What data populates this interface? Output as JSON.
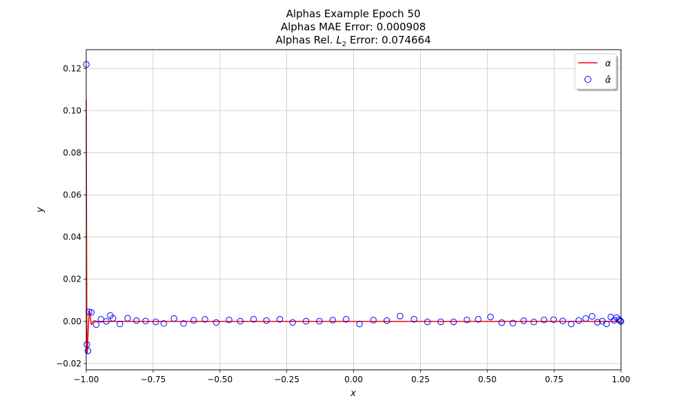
{
  "chart_data": {
    "type": "line",
    "title_lines": [
      "Alphas Example Epoch 50",
      "Alphas MAE Error: 0.000908"
    ],
    "title_l2": {
      "prefix": "Alphas Rel. ",
      "symbol": "L",
      "subscript": "2",
      "suffix": " Error: 0.074664"
    },
    "xlabel": "x",
    "ylabel": "y",
    "xlim": [
      -1.0,
      1.0
    ],
    "ylim": [
      -0.023,
      0.129
    ],
    "xticks": [
      -1.0,
      -0.75,
      -0.5,
      -0.25,
      0.0,
      0.25,
      0.5,
      0.75,
      1.0
    ],
    "xtick_labels": [
      "−1.00",
      "−0.75",
      "−0.50",
      "−0.25",
      "0.00",
      "0.25",
      "0.50",
      "0.75",
      "1.00"
    ],
    "yticks": [
      -0.02,
      0.0,
      0.02,
      0.04,
      0.06,
      0.08,
      0.1,
      0.12
    ],
    "ytick_labels": [
      "−0.02",
      "0.00",
      "0.02",
      "0.04",
      "0.06",
      "0.08",
      "0.10",
      "0.12"
    ],
    "grid": true,
    "legend_position": "top-right",
    "colors": {
      "line": "#ff0000",
      "markers": "#0000ff"
    },
    "series": [
      {
        "name": "α",
        "kind": "line",
        "x": [
          -1.0,
          -0.999,
          -0.998,
          -0.997,
          -0.996,
          -0.995,
          -0.994,
          -0.993,
          -0.992,
          -0.991,
          -0.99,
          -0.988,
          -0.986,
          -0.984,
          -0.982,
          -0.98,
          -0.978,
          -0.975,
          -0.97,
          -0.96,
          -0.95,
          -0.9,
          -0.5,
          0.0,
          0.5,
          0.999,
          1.0
        ],
        "y": [
          0.105,
          0.05,
          0.0,
          -0.014,
          -0.015,
          -0.012,
          -0.008,
          -0.005,
          -0.002,
          0.0,
          0.002,
          0.005,
          0.004,
          0.0015,
          -0.001,
          -0.0015,
          -0.001,
          0.0,
          0.0003,
          0.0,
          0.0,
          0.0,
          0.0,
          0.0,
          0.0,
          0.0,
          0.0
        ]
      },
      {
        "name": "α̂",
        "kind": "scatter",
        "x": [
          -0.9995,
          -0.9975,
          -0.994,
          -0.99,
          -0.981,
          -0.963,
          -0.945,
          -0.925,
          -0.91,
          -0.9,
          -0.874,
          -0.845,
          -0.812,
          -0.778,
          -0.74,
          -0.71,
          -0.672,
          -0.636,
          -0.598,
          -0.556,
          -0.514,
          -0.466,
          -0.424,
          -0.374,
          -0.326,
          -0.276,
          -0.228,
          -0.178,
          -0.128,
          -0.078,
          -0.028,
          0.022,
          0.074,
          0.124,
          0.174,
          0.226,
          0.276,
          0.326,
          0.374,
          0.424,
          0.466,
          0.512,
          0.554,
          0.596,
          0.636,
          0.674,
          0.712,
          0.748,
          0.782,
          0.814,
          0.842,
          0.868,
          0.892,
          0.912,
          0.93,
          0.946,
          0.962,
          0.974,
          0.984,
          0.992,
          0.997,
          0.9995
        ],
        "y": [
          0.122,
          -0.011,
          -0.014,
          0.0045,
          0.0043,
          -0.0015,
          0.001,
          0.0,
          0.0028,
          0.0015,
          -0.0012,
          0.0015,
          0.0004,
          0.0002,
          -0.0002,
          -0.001,
          0.0014,
          -0.001,
          0.0005,
          0.001,
          -0.0005,
          0.0007,
          0.0001,
          0.001,
          0.0004,
          0.001,
          -0.0005,
          0.0001,
          0.0001,
          0.0006,
          0.001,
          -0.0012,
          0.0006,
          0.0004,
          0.0025,
          0.001,
          -0.0002,
          -0.0002,
          -0.0002,
          0.0007,
          0.001,
          0.0021,
          -0.0006,
          -0.0008,
          0.0003,
          -0.0003,
          0.0007,
          0.0008,
          0.0002,
          -0.0012,
          0.0004,
          0.0014,
          0.0024,
          -0.0004,
          0.0001,
          -0.0012,
          0.0021,
          0.0005,
          0.0018,
          0.0008,
          0.0003,
          0.0
        ]
      }
    ]
  }
}
